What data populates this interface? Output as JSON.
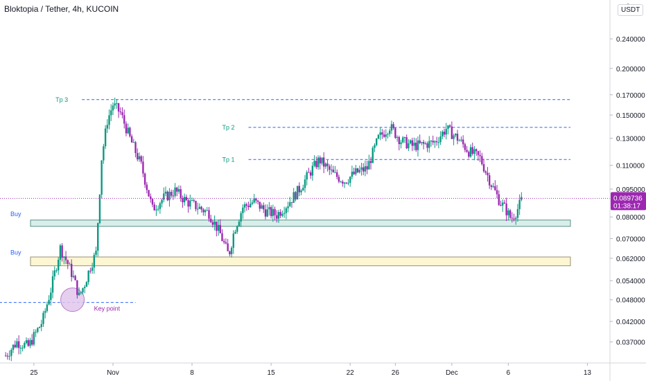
{
  "header": {
    "title": "Bloktopia / Tether, 4h, KUCOIN",
    "currency": "USDT",
    "corner_tick": "0"
  },
  "colors": {
    "up": "#089981",
    "down": "#9c27b0",
    "tp_line": "#2962ff",
    "price_line": "#9c27b0",
    "zone_green": "#d9eeea",
    "zone_green_border": "#5a8f86",
    "zone_yellow": "#fdf6d2",
    "zone_yellow_border": "#9a9070",
    "circle_fill": "#e2c6ec",
    "circle_border": "#b07cc6",
    "tp_text": "#089981",
    "buy_text": "#2962ff"
  },
  "chart_data": {
    "type": "candlestick",
    "title": "Bloktopia / Tether, 4h, KUCOIN",
    "y_scale": "log",
    "ylim": [
      0.0325,
      0.305
    ],
    "xlim": [
      "2021-10-22",
      "2021-12-15"
    ],
    "y_ticks": [
      "0.240000",
      "0.200000",
      "0.170000",
      "0.150000",
      "0.130000",
      "0.110000",
      "0.095000",
      "0.080000",
      "0.070000",
      "0.062000",
      "0.054000",
      "0.048000",
      "0.042000",
      "0.037000"
    ],
    "y_tick_values": [
      0.24,
      0.2,
      0.17,
      0.15,
      0.13,
      0.11,
      0.095,
      0.08,
      0.07,
      0.062,
      0.054,
      0.048,
      0.042,
      0.037
    ],
    "x_ticks": [
      {
        "label": "25",
        "date": "2021-10-25"
      },
      {
        "label": "Nov",
        "date": "2021-11-01"
      },
      {
        "label": "8",
        "date": "2021-11-08"
      },
      {
        "label": "15",
        "date": "2021-11-15"
      },
      {
        "label": "22",
        "date": "2021-11-22"
      },
      {
        "label": "26",
        "date": "2021-11-26"
      },
      {
        "label": "Dec",
        "date": "2021-12-01"
      },
      {
        "label": "6",
        "date": "2021-12-06"
      },
      {
        "label": "13",
        "date": "2021-12-13"
      }
    ],
    "anchors": [
      [
        "2021-10-22 12:00",
        0.034
      ],
      [
        "2021-10-23 12:00",
        0.037
      ],
      [
        "2021-10-24 12:00",
        0.036
      ],
      [
        "2021-10-25 18:00",
        0.042
      ],
      [
        "2021-10-26 12:00",
        0.051
      ],
      [
        "2021-10-27 08:00",
        0.066
      ],
      [
        "2021-10-28 00:00",
        0.06
      ],
      [
        "2021-10-28 12:00",
        0.055
      ],
      [
        "2021-10-29 00:00",
        0.049
      ],
      [
        "2021-10-29 12:00",
        0.053
      ],
      [
        "2021-10-30 00:00",
        0.059
      ],
      [
        "2021-10-30 12:00",
        0.064
      ],
      [
        "2021-10-31 00:00",
        0.115
      ],
      [
        "2021-10-31 12:00",
        0.145
      ],
      [
        "2021-11-01 00:00",
        0.16
      ],
      [
        "2021-11-01 16:00",
        0.152
      ],
      [
        "2021-11-02 12:00",
        0.13
      ],
      [
        "2021-11-03 12:00",
        0.11
      ],
      [
        "2021-11-04 12:00",
        0.084
      ],
      [
        "2021-11-05 12:00",
        0.09
      ],
      [
        "2021-11-06 12:00",
        0.094
      ],
      [
        "2021-11-07 12:00",
        0.088
      ],
      [
        "2021-11-08 12:00",
        0.085
      ],
      [
        "2021-11-09 12:00",
        0.082
      ],
      [
        "2021-11-10 12:00",
        0.072
      ],
      [
        "2021-11-11 06:00",
        0.063
      ],
      [
        "2021-11-11 18:00",
        0.074
      ],
      [
        "2021-11-12 12:00",
        0.085
      ],
      [
        "2021-11-13 12:00",
        0.088
      ],
      [
        "2021-11-14 12:00",
        0.083
      ],
      [
        "2021-11-15 12:00",
        0.081
      ],
      [
        "2021-11-16 12:00",
        0.087
      ],
      [
        "2021-11-17 12:00",
        0.095
      ],
      [
        "2021-11-18 12:00",
        0.106
      ],
      [
        "2021-11-19 06:00",
        0.114
      ],
      [
        "2021-11-20 12:00",
        0.104
      ],
      [
        "2021-11-21 12:00",
        0.1
      ],
      [
        "2021-11-22 12:00",
        0.105
      ],
      [
        "2021-11-23 12:00",
        0.108
      ],
      [
        "2021-11-24 12:00",
        0.13
      ],
      [
        "2021-11-25 12:00",
        0.14
      ],
      [
        "2021-11-26 12:00",
        0.128
      ],
      [
        "2021-11-27 12:00",
        0.124
      ],
      [
        "2021-11-28 12:00",
        0.125
      ],
      [
        "2021-11-29 12:00",
        0.127
      ],
      [
        "2021-11-30 12:00",
        0.138
      ],
      [
        "2021-12-01 12:00",
        0.13
      ],
      [
        "2021-12-02 12:00",
        0.12
      ],
      [
        "2021-12-03 12:00",
        0.115
      ],
      [
        "2021-12-04 12:00",
        0.098
      ],
      [
        "2021-12-05 06:00",
        0.088
      ],
      [
        "2021-12-05 18:00",
        0.084
      ],
      [
        "2021-12-06 06:00",
        0.079
      ],
      [
        "2021-12-06 18:00",
        0.083
      ],
      [
        "2021-12-07 06:00",
        0.0897
      ]
    ],
    "last_price": "0.089736",
    "countdown": "01:38:17",
    "annotations": {
      "tp_levels": [
        {
          "label": "Tp 3",
          "price": 0.165,
          "from": "2021-10-29 06:00",
          "to": "2021-12-11 12:00"
        },
        {
          "label": "Tp 2",
          "price": 0.139,
          "from": "2021-11-13 00:00",
          "to": "2021-12-11 12:00"
        },
        {
          "label": "Tp 1",
          "price": 0.114,
          "from": "2021-11-13 00:00",
          "to": "2021-12-11 12:00"
        }
      ],
      "buy_zones": [
        {
          "label": "Buy",
          "high": 0.0785,
          "low": 0.0755,
          "from": "2021-10-22 00:00",
          "to": "2021-12-11 12:00",
          "style": "green"
        },
        {
          "label": "Buy",
          "high": 0.0625,
          "low": 0.0592,
          "from": "2021-10-22 00:00",
          "to": "2021-12-11 12:00",
          "style": "yellow"
        }
      ],
      "key_point": {
        "label": "Key point",
        "price": 0.0472,
        "date": "2021-10-28 10:00",
        "line_from": "2021-10-21 12:00",
        "line_to": "2021-11-03 00:00"
      }
    }
  }
}
